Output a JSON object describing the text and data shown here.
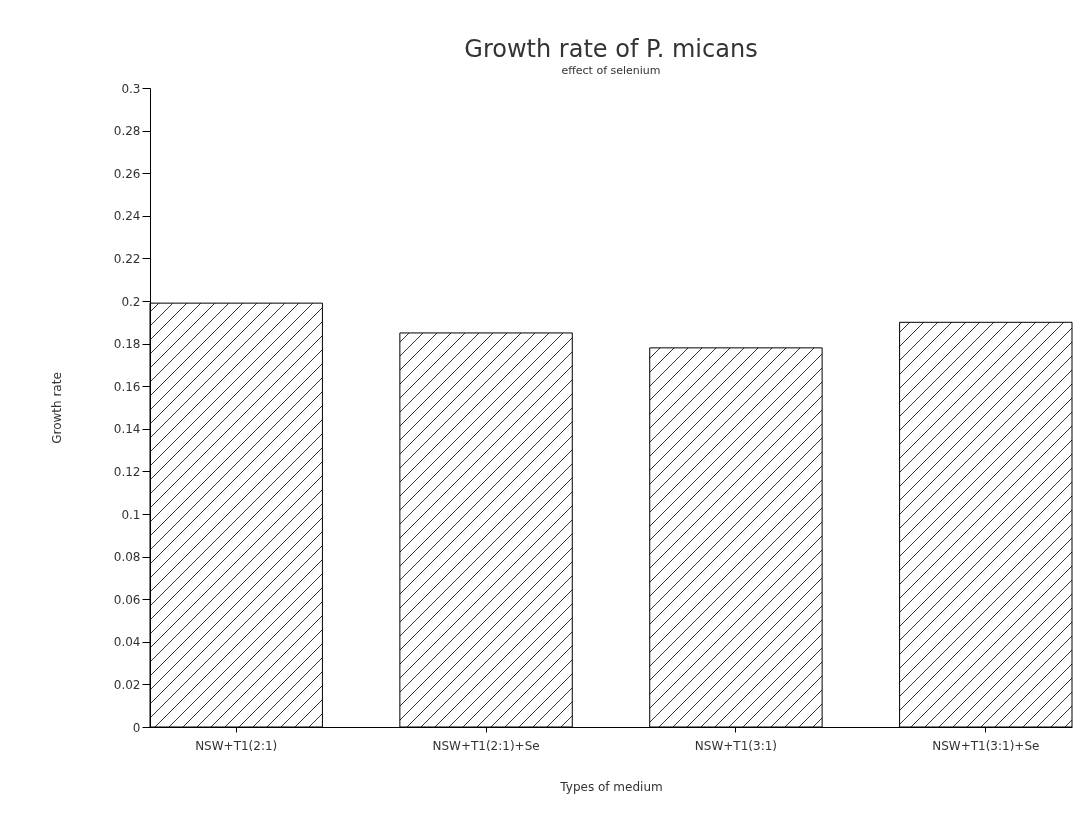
{
  "chart_data": {
    "type": "bar",
    "title": "Growth rate of P. micans",
    "subtitle": "effect of selenium",
    "xlabel": "Types of medium",
    "ylabel": "Growth rate",
    "categories": [
      "NSW+T1(2:1)",
      "NSW+T1(2:1)+Se",
      "NSW+T1(3:1)",
      "NSW+T1(3:1)+Se"
    ],
    "values": [
      0.199,
      0.185,
      0.178,
      0.19
    ],
    "color": "#000000",
    "ylim": [
      0,
      0.3
    ],
    "yticks": [
      0,
      0.02,
      0.04,
      0.06,
      0.08,
      0.1,
      0.12,
      0.14,
      0.16,
      0.18,
      0.2,
      0.22,
      0.24,
      0.26,
      0.28,
      0.3
    ],
    "grid": false
  }
}
